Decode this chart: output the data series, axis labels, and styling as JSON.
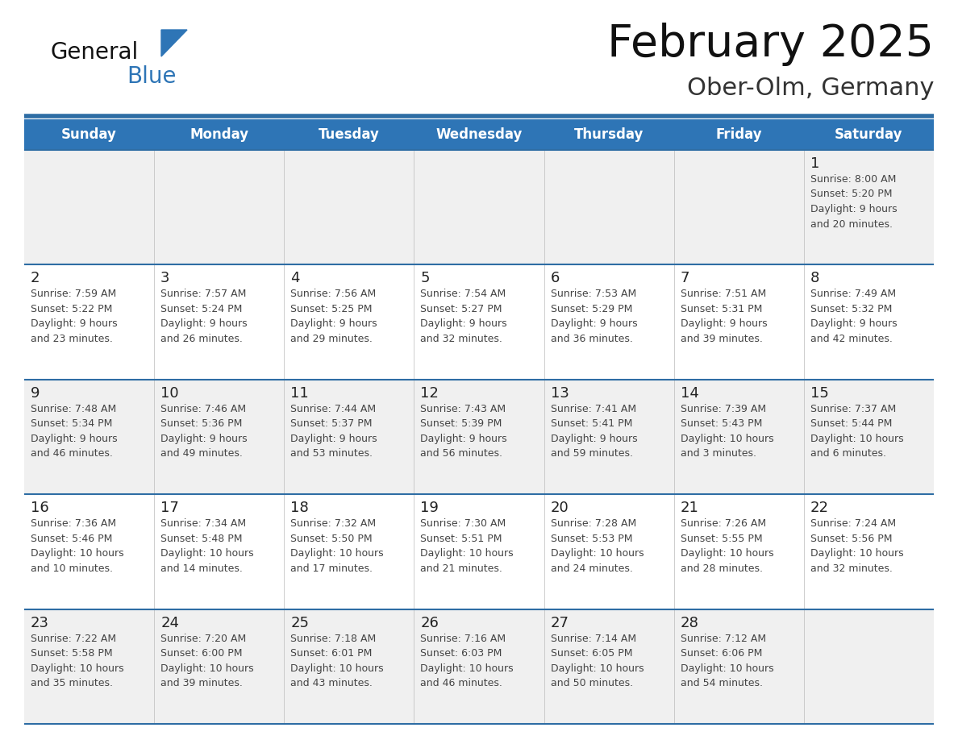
{
  "title": "February 2025",
  "subtitle": "Ober-Olm, Germany",
  "days_of_week": [
    "Sunday",
    "Monday",
    "Tuesday",
    "Wednesday",
    "Thursday",
    "Friday",
    "Saturday"
  ],
  "header_bg": "#2E75B6",
  "header_text": "#FFFFFF",
  "cell_bg_white": "#FFFFFF",
  "cell_bg_gray": "#F0F0F0",
  "separator_color": "#2E6DA4",
  "day_number_color": "#222222",
  "cell_text_color": "#444444",
  "title_color": "#111111",
  "subtitle_color": "#333333",
  "logo_general_color": "#111111",
  "logo_blue_color": "#2E75B6",
  "row_bg_pattern": [
    1,
    0,
    1,
    0,
    1
  ],
  "calendar_data": [
    [
      {
        "day": null,
        "info": null
      },
      {
        "day": null,
        "info": null
      },
      {
        "day": null,
        "info": null
      },
      {
        "day": null,
        "info": null
      },
      {
        "day": null,
        "info": null
      },
      {
        "day": null,
        "info": null
      },
      {
        "day": 1,
        "info": "Sunrise: 8:00 AM\nSunset: 5:20 PM\nDaylight: 9 hours\nand 20 minutes."
      }
    ],
    [
      {
        "day": 2,
        "info": "Sunrise: 7:59 AM\nSunset: 5:22 PM\nDaylight: 9 hours\nand 23 minutes."
      },
      {
        "day": 3,
        "info": "Sunrise: 7:57 AM\nSunset: 5:24 PM\nDaylight: 9 hours\nand 26 minutes."
      },
      {
        "day": 4,
        "info": "Sunrise: 7:56 AM\nSunset: 5:25 PM\nDaylight: 9 hours\nand 29 minutes."
      },
      {
        "day": 5,
        "info": "Sunrise: 7:54 AM\nSunset: 5:27 PM\nDaylight: 9 hours\nand 32 minutes."
      },
      {
        "day": 6,
        "info": "Sunrise: 7:53 AM\nSunset: 5:29 PM\nDaylight: 9 hours\nand 36 minutes."
      },
      {
        "day": 7,
        "info": "Sunrise: 7:51 AM\nSunset: 5:31 PM\nDaylight: 9 hours\nand 39 minutes."
      },
      {
        "day": 8,
        "info": "Sunrise: 7:49 AM\nSunset: 5:32 PM\nDaylight: 9 hours\nand 42 minutes."
      }
    ],
    [
      {
        "day": 9,
        "info": "Sunrise: 7:48 AM\nSunset: 5:34 PM\nDaylight: 9 hours\nand 46 minutes."
      },
      {
        "day": 10,
        "info": "Sunrise: 7:46 AM\nSunset: 5:36 PM\nDaylight: 9 hours\nand 49 minutes."
      },
      {
        "day": 11,
        "info": "Sunrise: 7:44 AM\nSunset: 5:37 PM\nDaylight: 9 hours\nand 53 minutes."
      },
      {
        "day": 12,
        "info": "Sunrise: 7:43 AM\nSunset: 5:39 PM\nDaylight: 9 hours\nand 56 minutes."
      },
      {
        "day": 13,
        "info": "Sunrise: 7:41 AM\nSunset: 5:41 PM\nDaylight: 9 hours\nand 59 minutes."
      },
      {
        "day": 14,
        "info": "Sunrise: 7:39 AM\nSunset: 5:43 PM\nDaylight: 10 hours\nand 3 minutes."
      },
      {
        "day": 15,
        "info": "Sunrise: 7:37 AM\nSunset: 5:44 PM\nDaylight: 10 hours\nand 6 minutes."
      }
    ],
    [
      {
        "day": 16,
        "info": "Sunrise: 7:36 AM\nSunset: 5:46 PM\nDaylight: 10 hours\nand 10 minutes."
      },
      {
        "day": 17,
        "info": "Sunrise: 7:34 AM\nSunset: 5:48 PM\nDaylight: 10 hours\nand 14 minutes."
      },
      {
        "day": 18,
        "info": "Sunrise: 7:32 AM\nSunset: 5:50 PM\nDaylight: 10 hours\nand 17 minutes."
      },
      {
        "day": 19,
        "info": "Sunrise: 7:30 AM\nSunset: 5:51 PM\nDaylight: 10 hours\nand 21 minutes."
      },
      {
        "day": 20,
        "info": "Sunrise: 7:28 AM\nSunset: 5:53 PM\nDaylight: 10 hours\nand 24 minutes."
      },
      {
        "day": 21,
        "info": "Sunrise: 7:26 AM\nSunset: 5:55 PM\nDaylight: 10 hours\nand 28 minutes."
      },
      {
        "day": 22,
        "info": "Sunrise: 7:24 AM\nSunset: 5:56 PM\nDaylight: 10 hours\nand 32 minutes."
      }
    ],
    [
      {
        "day": 23,
        "info": "Sunrise: 7:22 AM\nSunset: 5:58 PM\nDaylight: 10 hours\nand 35 minutes."
      },
      {
        "day": 24,
        "info": "Sunrise: 7:20 AM\nSunset: 6:00 PM\nDaylight: 10 hours\nand 39 minutes."
      },
      {
        "day": 25,
        "info": "Sunrise: 7:18 AM\nSunset: 6:01 PM\nDaylight: 10 hours\nand 43 minutes."
      },
      {
        "day": 26,
        "info": "Sunrise: 7:16 AM\nSunset: 6:03 PM\nDaylight: 10 hours\nand 46 minutes."
      },
      {
        "day": 27,
        "info": "Sunrise: 7:14 AM\nSunset: 6:05 PM\nDaylight: 10 hours\nand 50 minutes."
      },
      {
        "day": 28,
        "info": "Sunrise: 7:12 AM\nSunset: 6:06 PM\nDaylight: 10 hours\nand 54 minutes."
      },
      {
        "day": null,
        "info": null
      }
    ]
  ]
}
